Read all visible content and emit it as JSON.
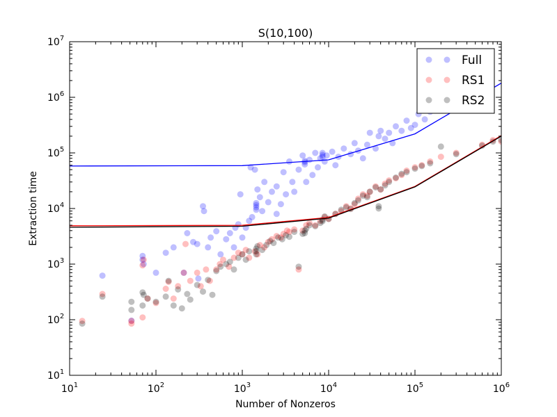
{
  "chart_data": {
    "type": "scatter",
    "title": "S(10,100)",
    "xlabel": "Number of Nonzeros",
    "ylabel": "Extraction time",
    "xscale": "log",
    "yscale": "log",
    "xlim": [
      10,
      1000000
    ],
    "ylim": [
      10,
      10000000
    ],
    "x_ticks": [
      {
        "base": "10",
        "exp": "1",
        "value": 10
      },
      {
        "base": "10",
        "exp": "2",
        "value": 100
      },
      {
        "base": "10",
        "exp": "3",
        "value": 1000
      },
      {
        "base": "10",
        "exp": "4",
        "value": 10000
      },
      {
        "base": "10",
        "exp": "5",
        "value": 100000
      },
      {
        "base": "10",
        "exp": "6",
        "value": 1000000
      }
    ],
    "y_ticks": [
      {
        "base": "10",
        "exp": "1",
        "value": 10
      },
      {
        "base": "10",
        "exp": "2",
        "value": 100
      },
      {
        "base": "10",
        "exp": "3",
        "value": 1000
      },
      {
        "base": "10",
        "exp": "4",
        "value": 10000
      },
      {
        "base": "10",
        "exp": "5",
        "value": 100000
      },
      {
        "base": "10",
        "exp": "6",
        "value": 1000000
      },
      {
        "base": "10",
        "exp": "7",
        "value": 10000000
      }
    ],
    "legend": {
      "placement": "top-right",
      "entries": [
        "Full",
        "RS1",
        "RS2"
      ]
    },
    "series": [
      {
        "name": "Full",
        "color": "#0000ff",
        "points": [
          [
            24,
            620
          ],
          [
            52,
            96
          ],
          [
            70,
            1400
          ],
          [
            70,
            1200
          ],
          [
            72,
            1000
          ],
          [
            100,
            700
          ],
          [
            130,
            1600
          ],
          [
            160,
            2000
          ],
          [
            210,
            700
          ],
          [
            230,
            3600
          ],
          [
            270,
            2500
          ],
          [
            300,
            2300
          ],
          [
            310,
            550
          ],
          [
            350,
            11000
          ],
          [
            360,
            9000
          ],
          [
            400,
            2000
          ],
          [
            430,
            3000
          ],
          [
            500,
            3900
          ],
          [
            560,
            1500
          ],
          [
            650,
            2800
          ],
          [
            720,
            3600
          ],
          [
            800,
            2000
          ],
          [
            830,
            4500
          ],
          [
            900,
            5200
          ],
          [
            950,
            18000
          ],
          [
            1000,
            3000
          ],
          [
            1100,
            4500
          ],
          [
            1200,
            6000
          ],
          [
            1250,
            55000
          ],
          [
            1300,
            7000
          ],
          [
            1400,
            50000
          ],
          [
            1450,
            9500
          ],
          [
            1450,
            10500
          ],
          [
            1450,
            11500
          ],
          [
            1450,
            12500
          ],
          [
            1500,
            22000
          ],
          [
            1600,
            16000
          ],
          [
            1700,
            9000
          ],
          [
            1800,
            30000
          ],
          [
            2000,
            13000
          ],
          [
            2200,
            20000
          ],
          [
            2500,
            8000
          ],
          [
            2500,
            25000
          ],
          [
            2800,
            12000
          ],
          [
            3000,
            45000
          ],
          [
            3200,
            18000
          ],
          [
            3500,
            70000
          ],
          [
            3800,
            30000
          ],
          [
            4000,
            20000
          ],
          [
            4500,
            50000
          ],
          [
            5000,
            90000
          ],
          [
            5300,
            62000
          ],
          [
            5300,
            68000
          ],
          [
            5300,
            72000
          ],
          [
            5500,
            30000
          ],
          [
            6000,
            75000
          ],
          [
            6500,
            40000
          ],
          [
            7000,
            100000
          ],
          [
            7500,
            55000
          ],
          [
            8000,
            80000
          ],
          [
            8500,
            85000
          ],
          [
            8500,
            92000
          ],
          [
            8500,
            100000
          ],
          [
            9000,
            70000
          ],
          [
            9500,
            90000
          ],
          [
            11000,
            105000
          ],
          [
            12000,
            60000
          ],
          [
            13000,
            85000
          ],
          [
            15000,
            120000
          ],
          [
            18000,
            95000
          ],
          [
            20000,
            150000
          ],
          [
            22000,
            110000
          ],
          [
            25000,
            80000
          ],
          [
            28000,
            140000
          ],
          [
            30000,
            230000
          ],
          [
            35000,
            120000
          ],
          [
            38000,
            200000
          ],
          [
            40000,
            250000
          ],
          [
            45000,
            180000
          ],
          [
            50000,
            230000
          ],
          [
            55000,
            150000
          ],
          [
            60000,
            300000
          ],
          [
            70000,
            250000
          ],
          [
            80000,
            380000
          ],
          [
            90000,
            280000
          ],
          [
            100000,
            320000
          ],
          [
            110000,
            500000
          ],
          [
            130000,
            400000
          ],
          [
            150000,
            550000
          ],
          [
            180000,
            600000
          ],
          [
            220000,
            700000
          ],
          [
            300000,
            900000
          ],
          [
            400000,
            1100000
          ],
          [
            500000,
            1300000
          ],
          [
            700000,
            1500000
          ]
        ],
        "fit": [
          [
            10,
            58000
          ],
          [
            1000,
            59000
          ],
          [
            10000,
            75000
          ],
          [
            100000,
            220000
          ],
          [
            1000000,
            1800000
          ]
        ]
      },
      {
        "name": "RS1",
        "color": "#ff0000",
        "points": [
          [
            14,
            95
          ],
          [
            24,
            290
          ],
          [
            52,
            85
          ],
          [
            52,
            95
          ],
          [
            70,
            110
          ],
          [
            70,
            950
          ],
          [
            72,
            1200
          ],
          [
            80,
            240
          ],
          [
            100,
            200
          ],
          [
            130,
            360
          ],
          [
            140,
            480
          ],
          [
            160,
            240
          ],
          [
            180,
            400
          ],
          [
            210,
            700
          ],
          [
            220,
            2300
          ],
          [
            250,
            500
          ],
          [
            300,
            700
          ],
          [
            330,
            400
          ],
          [
            380,
            800
          ],
          [
            420,
            500
          ],
          [
            500,
            800
          ],
          [
            550,
            1000
          ],
          [
            600,
            1200
          ],
          [
            700,
            900
          ],
          [
            800,
            1300
          ],
          [
            900,
            1600
          ],
          [
            1000,
            1500
          ],
          [
            1100,
            1800
          ],
          [
            1200,
            1300
          ],
          [
            1400,
            1700
          ],
          [
            1500,
            1500
          ],
          [
            1600,
            2200
          ],
          [
            1800,
            2000
          ],
          [
            2000,
            2500
          ],
          [
            2200,
            2800
          ],
          [
            2500,
            3200
          ],
          [
            2800,
            3000
          ],
          [
            3000,
            3500
          ],
          [
            3300,
            4000
          ],
          [
            3500,
            3800
          ],
          [
            4000,
            4200
          ],
          [
            4500,
            800
          ],
          [
            5000,
            4000
          ],
          [
            5500,
            5000
          ],
          [
            6000,
            5500
          ],
          [
            7000,
            5000
          ],
          [
            8000,
            6000
          ],
          [
            9000,
            7000
          ],
          [
            10000,
            6500
          ],
          [
            12000,
            8000
          ],
          [
            14000,
            9000
          ],
          [
            16000,
            11000
          ],
          [
            18000,
            10000
          ],
          [
            20000,
            12000
          ],
          [
            22000,
            15000
          ],
          [
            25000,
            18000
          ],
          [
            28000,
            17000
          ],
          [
            30000,
            20000
          ],
          [
            35000,
            25000
          ],
          [
            40000,
            22000
          ],
          [
            45000,
            28000
          ],
          [
            50000,
            32000
          ],
          [
            60000,
            35000
          ],
          [
            70000,
            40000
          ],
          [
            80000,
            48000
          ],
          [
            100000,
            55000
          ],
          [
            120000,
            60000
          ],
          [
            150000,
            70000
          ],
          [
            200000,
            85000
          ],
          [
            300000,
            100000
          ],
          [
            600000,
            140000
          ],
          [
            800000,
            170000
          ],
          [
            1000000,
            160000
          ]
        ],
        "fit": [
          [
            10,
            4900
          ],
          [
            1000,
            5000
          ],
          [
            10000,
            6900
          ],
          [
            100000,
            25000
          ],
          [
            1000000,
            205000
          ]
        ]
      },
      {
        "name": "RS2",
        "color": "#000000",
        "points": [
          [
            14,
            85
          ],
          [
            24,
            260
          ],
          [
            52,
            210
          ],
          [
            52,
            150
          ],
          [
            70,
            180
          ],
          [
            70,
            310
          ],
          [
            72,
            280
          ],
          [
            80,
            240
          ],
          [
            100,
            210
          ],
          [
            130,
            260
          ],
          [
            140,
            500
          ],
          [
            160,
            180
          ],
          [
            180,
            350
          ],
          [
            200,
            160
          ],
          [
            230,
            290
          ],
          [
            250,
            230
          ],
          [
            300,
            420
          ],
          [
            350,
            320
          ],
          [
            400,
            520
          ],
          [
            450,
            280
          ],
          [
            500,
            750
          ],
          [
            560,
            900
          ],
          [
            650,
            1000
          ],
          [
            720,
            1100
          ],
          [
            800,
            800
          ],
          [
            900,
            1300
          ],
          [
            1000,
            1500
          ],
          [
            1100,
            1200
          ],
          [
            1200,
            1700
          ],
          [
            1450,
            1500
          ],
          [
            1450,
            1700
          ],
          [
            1450,
            1900
          ],
          [
            1500,
            2100
          ],
          [
            1700,
            1800
          ],
          [
            1900,
            2200
          ],
          [
            2100,
            2600
          ],
          [
            2300,
            2400
          ],
          [
            2600,
            3000
          ],
          [
            2900,
            2800
          ],
          [
            3200,
            3300
          ],
          [
            3500,
            3100
          ],
          [
            4000,
            3800
          ],
          [
            4500,
            900
          ],
          [
            5000,
            3500
          ],
          [
            5300,
            3600
          ],
          [
            5300,
            4000
          ],
          [
            5500,
            4300
          ],
          [
            6000,
            5000
          ],
          [
            7000,
            4800
          ],
          [
            8000,
            5500
          ],
          [
            8500,
            5900
          ],
          [
            8500,
            6300
          ],
          [
            9000,
            7200
          ],
          [
            10000,
            6500
          ],
          [
            12000,
            8000
          ],
          [
            14000,
            9500
          ],
          [
            16000,
            10500
          ],
          [
            18000,
            9800
          ],
          [
            20000,
            12500
          ],
          [
            22000,
            14000
          ],
          [
            25000,
            17000
          ],
          [
            28000,
            16000
          ],
          [
            30000,
            20000
          ],
          [
            35000,
            24000
          ],
          [
            38000,
            10000
          ],
          [
            38000,
            11000
          ],
          [
            40000,
            22000
          ],
          [
            45000,
            26000
          ],
          [
            50000,
            30000
          ],
          [
            60000,
            36000
          ],
          [
            70000,
            42000
          ],
          [
            80000,
            45000
          ],
          [
            100000,
            52000
          ],
          [
            120000,
            58000
          ],
          [
            150000,
            65000
          ],
          [
            200000,
            130000
          ],
          [
            300000,
            95000
          ],
          [
            600000,
            135000
          ],
          [
            800000,
            160000
          ],
          [
            1000000,
            170000
          ]
        ],
        "fit": [
          [
            10,
            4600
          ],
          [
            1000,
            4800
          ],
          [
            10000,
            6700
          ],
          [
            100000,
            24500
          ],
          [
            1000000,
            200000
          ]
        ]
      }
    ]
  }
}
